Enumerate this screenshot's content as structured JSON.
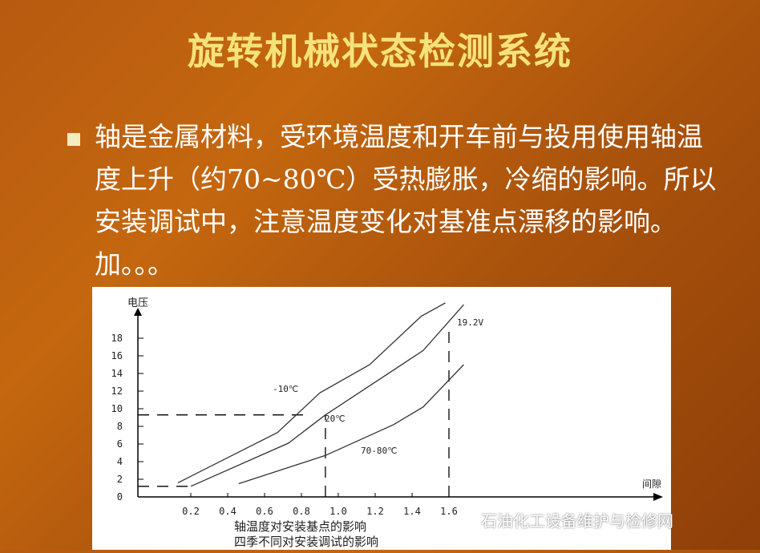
{
  "title": "旋转机械状态检测系统",
  "bullet_text": "轴是金属材料，受环境温度和开车前与投用使用轴温度上升（约70~80℃）受热膨胀，冷缩的影响。所以安装调试中，注意温度变化对基准点漂移的影响。加。。。",
  "watermark": "石油化工设备维护与检修网",
  "chart_data": {
    "type": "line",
    "ylabel": "电压",
    "xlabel": "间隙",
    "caption_lines": [
      "轴温度对安装基点的影响",
      "四季不同对安装调试的影响"
    ],
    "xticks": [
      "0.2",
      "0.4",
      "0.6",
      "0.8",
      "1.0",
      "1.2",
      "1.4",
      "1.6"
    ],
    "yticks": [
      "0",
      "2",
      "4",
      "6",
      "8",
      "10",
      "12",
      "14",
      "16",
      "18"
    ],
    "series": [
      {
        "name": "-10℃",
        "x": [
          0.13,
          0.67,
          0.9,
          1.17,
          1.45,
          1.58
        ],
        "y": [
          1.6,
          7.3,
          11.8,
          15,
          20.5,
          22
        ]
      },
      {
        "name": "20℃",
        "x": [
          0.2,
          0.73,
          0.93,
          1.46,
          1.68
        ],
        "y": [
          1.2,
          6.1,
          9.3,
          16.6,
          21.8
        ]
      },
      {
        "name": "70-80℃",
        "x": [
          0.46,
          0.93,
          1.3,
          1.46,
          1.68
        ],
        "y": [
          1.5,
          4.7,
          8.2,
          10.2,
          15
        ]
      }
    ],
    "annotations": [
      {
        "text": "19.2V",
        "x": 1.6,
        "y": 19.2
      }
    ],
    "reference_lines": [
      {
        "type": "h",
        "y": 9.3,
        "to_x": 0.82
      },
      {
        "type": "h",
        "y": 1.2,
        "to_x": 0.2
      },
      {
        "type": "v",
        "x": 0.93,
        "to_y": 9.3
      },
      {
        "type": "v",
        "x": 1.6,
        "to_y": 19.2
      }
    ]
  }
}
